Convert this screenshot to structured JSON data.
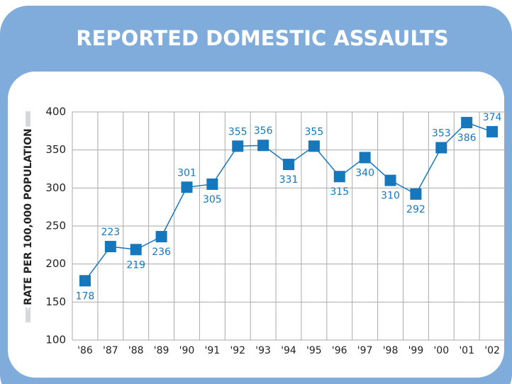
{
  "chart_data": {
    "type": "line",
    "title": "REPORTED DOMESTIC ASSAULTS",
    "y_label": "RATE PER 100,000 POPULATION",
    "categories": [
      "'86",
      "'87",
      "'88",
      "'89",
      "'90",
      "'91",
      "'92",
      "'93",
      "'94",
      "'95",
      "'96",
      "'97",
      "'98",
      "'99",
      "'00",
      "'01",
      "'02"
    ],
    "values": [
      178,
      223,
      219,
      236,
      301,
      305,
      355,
      356,
      331,
      355,
      315,
      340,
      310,
      292,
      353,
      386,
      374
    ],
    "color": "#1677bd",
    "ylim": [
      100,
      400
    ],
    "yticks": [
      100,
      150,
      200,
      250,
      300,
      350,
      400
    ],
    "grid": true
  }
}
